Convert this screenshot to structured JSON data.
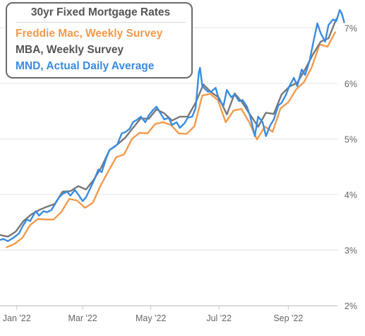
{
  "chart_data": {
    "type": "line",
    "title": "30yr Fixed Mortgage Rates",
    "xlabel": "",
    "ylabel": "",
    "ylim": [
      2,
      7.5
    ],
    "y_ticks": [
      "2%",
      "3%",
      "4%",
      "5%",
      "6%",
      "7%"
    ],
    "y_tick_values": [
      2,
      3,
      4,
      5,
      6,
      7
    ],
    "x_ticks": [
      "Jan '22",
      "Mar '22",
      "May '22",
      "Jul '22",
      "Sep '22"
    ],
    "x_tick_dates": [
      "2022-01-01",
      "2022-03-01",
      "2022-05-01",
      "2022-07-01",
      "2022-09-01"
    ],
    "xlim": [
      "2021-12-17",
      "2022-10-15"
    ],
    "grid": "horizontal",
    "legend_position": "top-left",
    "series": [
      {
        "name": "Freddie Mac, Weekly Survey",
        "color": "#f39a4c",
        "points": [
          [
            "2021-12-23",
            3.05
          ],
          [
            "2021-12-30",
            3.11
          ],
          [
            "2022-01-06",
            3.22
          ],
          [
            "2022-01-13",
            3.45
          ],
          [
            "2022-01-20",
            3.56
          ],
          [
            "2022-01-27",
            3.55
          ],
          [
            "2022-02-03",
            3.55
          ],
          [
            "2022-02-10",
            3.69
          ],
          [
            "2022-02-17",
            3.92
          ],
          [
            "2022-02-24",
            3.89
          ],
          [
            "2022-03-03",
            3.76
          ],
          [
            "2022-03-10",
            3.85
          ],
          [
            "2022-03-17",
            4.16
          ],
          [
            "2022-03-24",
            4.42
          ],
          [
            "2022-03-31",
            4.67
          ],
          [
            "2022-04-07",
            4.72
          ],
          [
            "2022-04-14",
            5.0
          ],
          [
            "2022-04-21",
            5.11
          ],
          [
            "2022-04-28",
            5.1
          ],
          [
            "2022-05-05",
            5.27
          ],
          [
            "2022-05-12",
            5.3
          ],
          [
            "2022-05-19",
            5.25
          ],
          [
            "2022-05-26",
            5.1
          ],
          [
            "2022-06-02",
            5.09
          ],
          [
            "2022-06-09",
            5.23
          ],
          [
            "2022-06-16",
            5.78
          ],
          [
            "2022-06-23",
            5.81
          ],
          [
            "2022-06-30",
            5.7
          ],
          [
            "2022-07-07",
            5.3
          ],
          [
            "2022-07-14",
            5.51
          ],
          [
            "2022-07-21",
            5.54
          ],
          [
            "2022-07-28",
            5.3
          ],
          [
            "2022-08-04",
            4.99
          ],
          [
            "2022-08-11",
            5.22
          ],
          [
            "2022-08-18",
            5.13
          ],
          [
            "2022-08-25",
            5.55
          ],
          [
            "2022-09-01",
            5.66
          ],
          [
            "2022-09-08",
            5.89
          ],
          [
            "2022-09-15",
            6.02
          ],
          [
            "2022-09-22",
            6.29
          ],
          [
            "2022-09-29",
            6.7
          ],
          [
            "2022-10-06",
            6.66
          ],
          [
            "2022-10-13",
            6.92
          ]
        ]
      },
      {
        "name": "MBA, Weekly Survey",
        "color": "#777777",
        "points": [
          [
            "2021-12-17",
            3.27
          ],
          [
            "2021-12-24",
            3.24
          ],
          [
            "2021-12-31",
            3.33
          ],
          [
            "2022-01-07",
            3.52
          ],
          [
            "2022-01-14",
            3.64
          ],
          [
            "2022-01-21",
            3.72
          ],
          [
            "2022-01-28",
            3.78
          ],
          [
            "2022-02-04",
            3.83
          ],
          [
            "2022-02-11",
            4.05
          ],
          [
            "2022-02-18",
            4.06
          ],
          [
            "2022-02-25",
            4.15
          ],
          [
            "2022-03-04",
            4.09
          ],
          [
            "2022-03-11",
            4.27
          ],
          [
            "2022-03-18",
            4.5
          ],
          [
            "2022-03-25",
            4.8
          ],
          [
            "2022-04-01",
            4.9
          ],
          [
            "2022-04-08",
            5.02
          ],
          [
            "2022-04-15",
            5.2
          ],
          [
            "2022-04-22",
            5.37
          ],
          [
            "2022-04-29",
            5.36
          ],
          [
            "2022-05-06",
            5.53
          ],
          [
            "2022-05-13",
            5.46
          ],
          [
            "2022-05-20",
            5.33
          ],
          [
            "2022-05-27",
            5.4
          ],
          [
            "2022-06-03",
            5.4
          ],
          [
            "2022-06-10",
            5.65
          ],
          [
            "2022-06-17",
            5.98
          ],
          [
            "2022-06-24",
            5.84
          ],
          [
            "2022-07-01",
            5.74
          ],
          [
            "2022-07-08",
            5.44
          ],
          [
            "2022-07-15",
            5.82
          ],
          [
            "2022-07-22",
            5.65
          ],
          [
            "2022-07-29",
            5.43
          ],
          [
            "2022-08-05",
            5.22
          ],
          [
            "2022-08-12",
            5.47
          ],
          [
            "2022-08-19",
            5.45
          ],
          [
            "2022-08-26",
            5.8
          ],
          [
            "2022-09-02",
            5.94
          ],
          [
            "2022-09-09",
            6.01
          ],
          [
            "2022-09-16",
            6.25
          ],
          [
            "2022-09-23",
            6.52
          ],
          [
            "2022-09-30",
            6.75
          ],
          [
            "2022-10-07",
            6.81
          ],
          [
            "2022-10-14",
            7.16
          ]
        ]
      },
      {
        "name": "MND, Actual Daily Average",
        "color": "#3a8be0",
        "points": [
          [
            "2021-12-17",
            3.18
          ],
          [
            "2021-12-20",
            3.2
          ],
          [
            "2021-12-24",
            3.16
          ],
          [
            "2021-12-29",
            3.22
          ],
          [
            "2022-01-03",
            3.3
          ],
          [
            "2022-01-06",
            3.42
          ],
          [
            "2022-01-10",
            3.55
          ],
          [
            "2022-01-13",
            3.52
          ],
          [
            "2022-01-18",
            3.7
          ],
          [
            "2022-01-21",
            3.62
          ],
          [
            "2022-01-25",
            3.7
          ],
          [
            "2022-01-28",
            3.68
          ],
          [
            "2022-02-01",
            3.72
          ],
          [
            "2022-02-04",
            3.82
          ],
          [
            "2022-02-08",
            3.95
          ],
          [
            "2022-02-11",
            4.01
          ],
          [
            "2022-02-15",
            4.05
          ],
          [
            "2022-02-18",
            3.98
          ],
          [
            "2022-02-22",
            4.08
          ],
          [
            "2022-02-25",
            4.0
          ],
          [
            "2022-03-01",
            3.88
          ],
          [
            "2022-03-04",
            3.95
          ],
          [
            "2022-03-08",
            4.12
          ],
          [
            "2022-03-11",
            4.25
          ],
          [
            "2022-03-15",
            4.45
          ],
          [
            "2022-03-18",
            4.4
          ],
          [
            "2022-03-22",
            4.65
          ],
          [
            "2022-03-25",
            4.8
          ],
          [
            "2022-03-29",
            4.85
          ],
          [
            "2022-04-01",
            4.9
          ],
          [
            "2022-04-05",
            5.1
          ],
          [
            "2022-04-08",
            5.12
          ],
          [
            "2022-04-12",
            5.18
          ],
          [
            "2022-04-15",
            5.3
          ],
          [
            "2022-04-19",
            5.35
          ],
          [
            "2022-04-22",
            5.4
          ],
          [
            "2022-04-26",
            5.3
          ],
          [
            "2022-04-29",
            5.42
          ],
          [
            "2022-05-03",
            5.52
          ],
          [
            "2022-05-06",
            5.58
          ],
          [
            "2022-05-10",
            5.45
          ],
          [
            "2022-05-13",
            5.35
          ],
          [
            "2022-05-17",
            5.38
          ],
          [
            "2022-05-20",
            5.25
          ],
          [
            "2022-05-24",
            5.3
          ],
          [
            "2022-05-27",
            5.2
          ],
          [
            "2022-05-31",
            5.28
          ],
          [
            "2022-06-03",
            5.38
          ],
          [
            "2022-06-07",
            5.4
          ],
          [
            "2022-06-10",
            5.55
          ],
          [
            "2022-06-13",
            6.2
          ],
          [
            "2022-06-14",
            6.28
          ],
          [
            "2022-06-16",
            5.95
          ],
          [
            "2022-06-21",
            5.85
          ],
          [
            "2022-06-24",
            5.85
          ],
          [
            "2022-06-28",
            5.92
          ],
          [
            "2022-07-01",
            5.7
          ],
          [
            "2022-07-05",
            5.6
          ],
          [
            "2022-07-08",
            5.88
          ],
          [
            "2022-07-12",
            5.75
          ],
          [
            "2022-07-15",
            5.8
          ],
          [
            "2022-07-19",
            5.68
          ],
          [
            "2022-07-22",
            5.7
          ],
          [
            "2022-07-26",
            5.58
          ],
          [
            "2022-07-29",
            5.4
          ],
          [
            "2022-08-02",
            5.05
          ],
          [
            "2022-08-05",
            5.4
          ],
          [
            "2022-08-09",
            5.3
          ],
          [
            "2022-08-12",
            5.05
          ],
          [
            "2022-08-16",
            5.25
          ],
          [
            "2022-08-19",
            5.35
          ],
          [
            "2022-08-23",
            5.6
          ],
          [
            "2022-08-26",
            5.65
          ],
          [
            "2022-08-30",
            5.8
          ],
          [
            "2022-09-02",
            5.95
          ],
          [
            "2022-09-06",
            6.1
          ],
          [
            "2022-09-09",
            5.95
          ],
          [
            "2022-09-13",
            6.25
          ],
          [
            "2022-09-16",
            6.15
          ],
          [
            "2022-09-20",
            6.4
          ],
          [
            "2022-09-23",
            6.7
          ],
          [
            "2022-09-27",
            7.08
          ],
          [
            "2022-09-30",
            6.9
          ],
          [
            "2022-10-04",
            6.75
          ],
          [
            "2022-10-07",
            7.05
          ],
          [
            "2022-10-11",
            7.15
          ],
          [
            "2022-10-14",
            7.12
          ],
          [
            "2022-10-17",
            7.32
          ],
          [
            "2022-10-19",
            7.25
          ],
          [
            "2022-10-21",
            7.1
          ]
        ]
      }
    ]
  }
}
